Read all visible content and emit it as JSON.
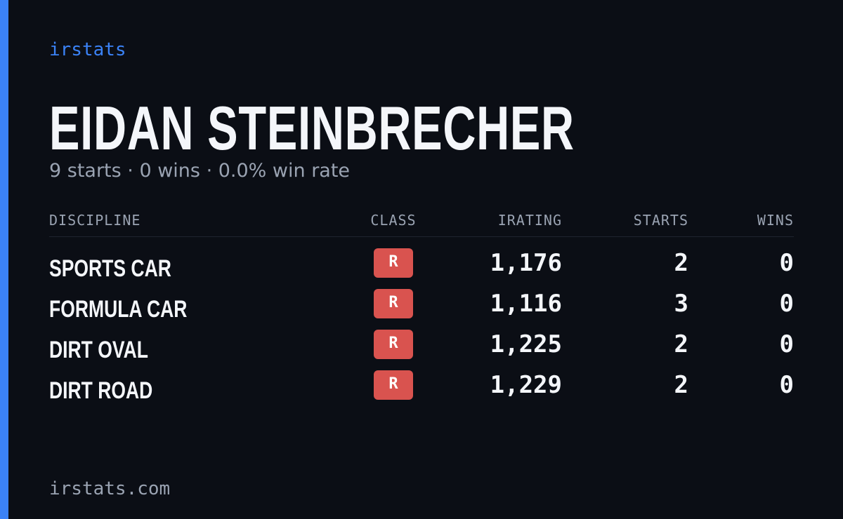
{
  "brand": "irstats",
  "driver": {
    "name": "EIDAN STEINBRECHER",
    "summary": "9 starts · 0 wins · 0.0% win rate"
  },
  "table": {
    "headers": [
      "DISCIPLINE",
      "CLASS",
      "IRATING",
      "STARTS",
      "WINS"
    ],
    "rows": [
      [
        "SPORTS CAR",
        "R",
        "1,176",
        "2",
        "0"
      ],
      [
        "FORMULA CAR",
        "R",
        "1,116",
        "3",
        "0"
      ],
      [
        "DIRT OVAL",
        "R",
        "1,225",
        "2",
        "0"
      ],
      [
        "DIRT ROAD",
        "R",
        "1,229",
        "2",
        "0"
      ]
    ]
  },
  "footer": "irstats.com"
}
